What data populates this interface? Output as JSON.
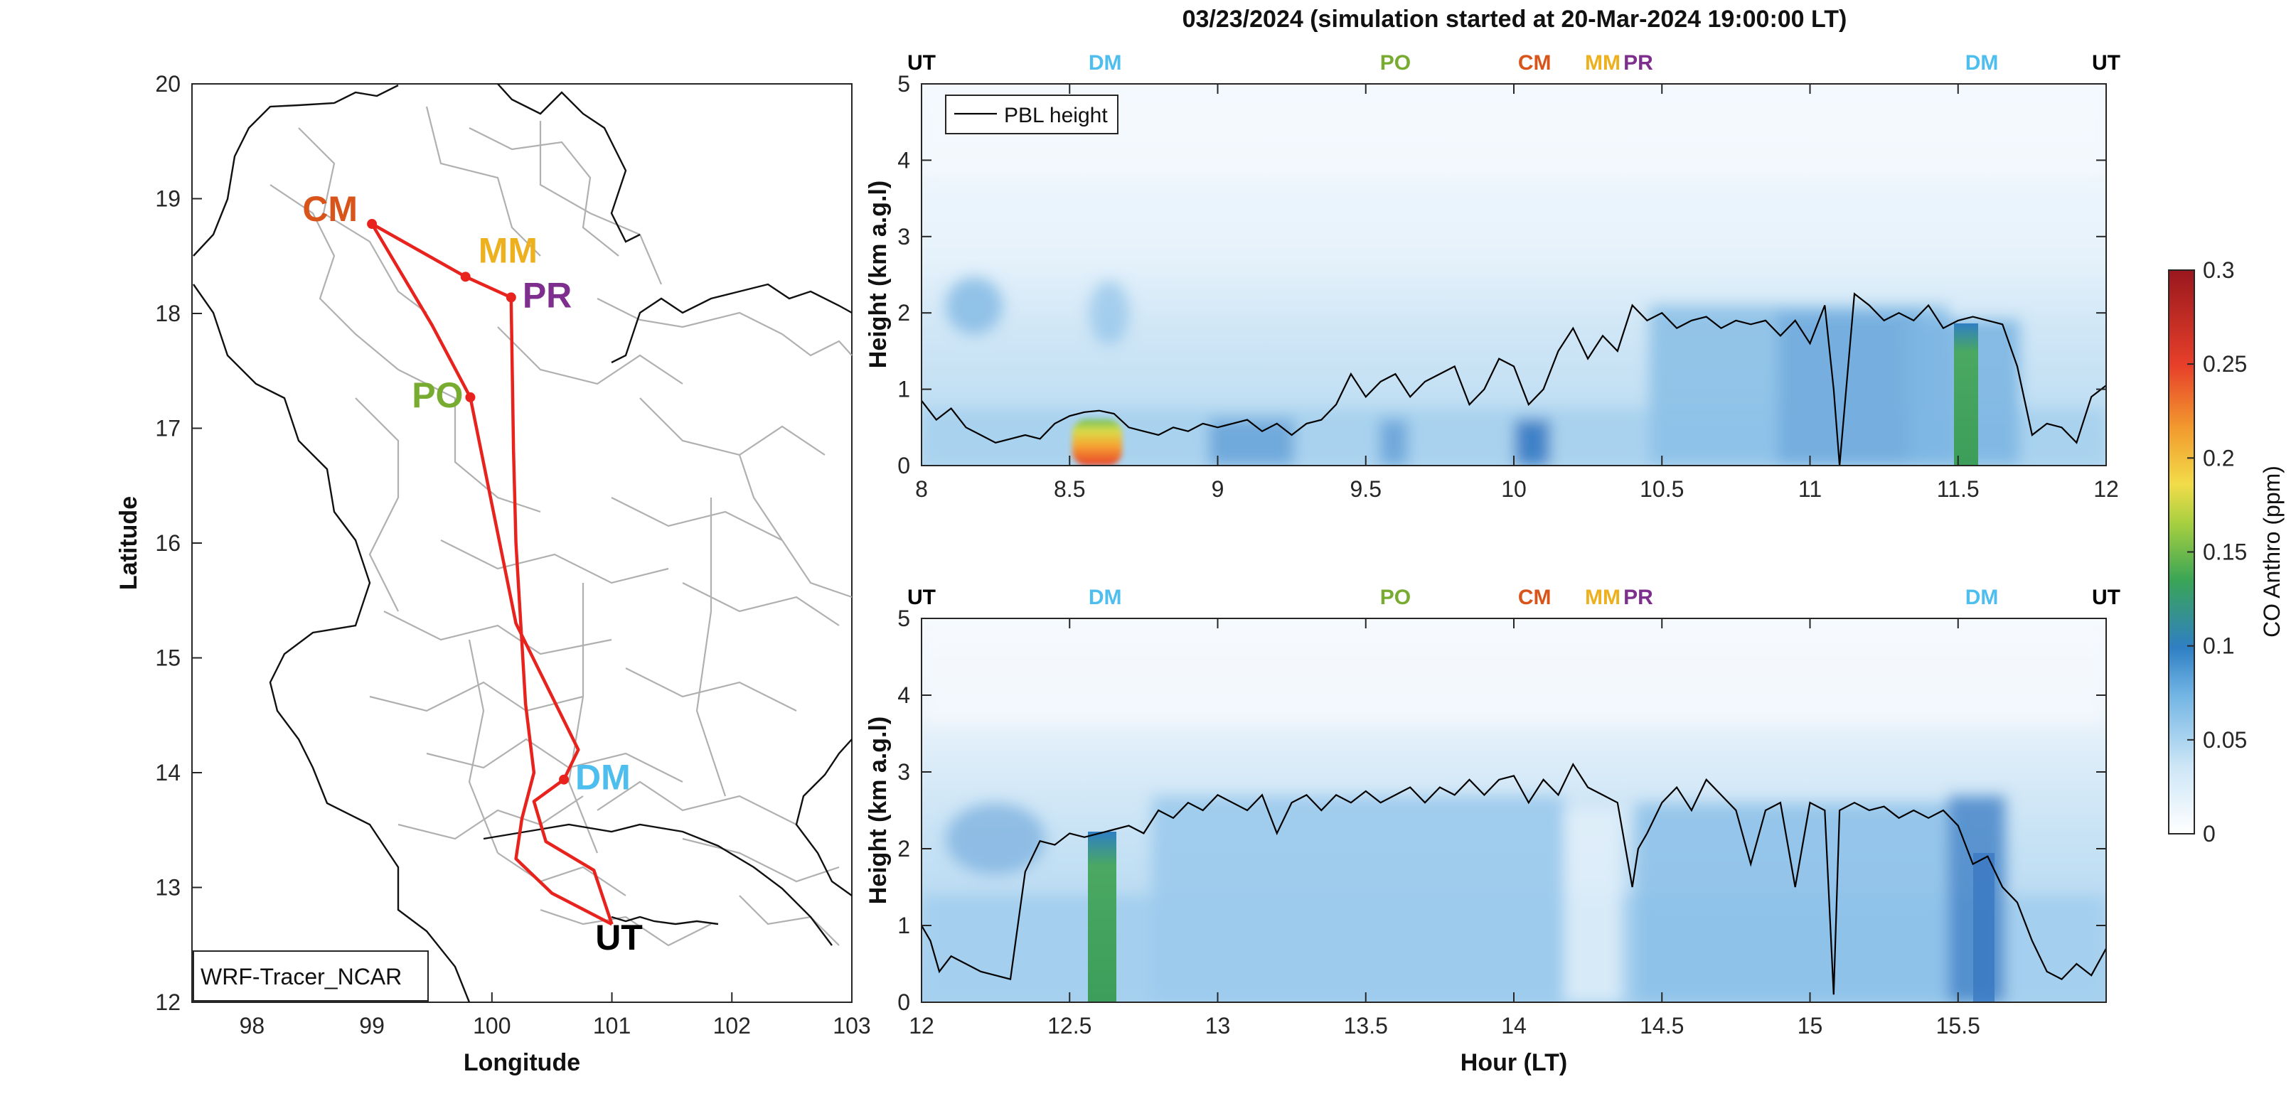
{
  "title": "03/23/2024 (simulation started at 20-Mar-2024 19:00:00 LT)",
  "map": {
    "xlabel": "Longitude",
    "ylabel": "Latitude",
    "xticks": [
      98,
      99,
      100,
      101,
      102,
      103
    ],
    "yticks": [
      12,
      13,
      14,
      15,
      16,
      17,
      18,
      19,
      20
    ],
    "xlim": [
      97.5,
      103
    ],
    "ylim": [
      12,
      20
    ],
    "legend_box": "WRF-Tracer_NCAR",
    "route_color": "#e8231e",
    "stations": [
      {
        "label": "CM",
        "lon": 99.0,
        "lat": 18.78,
        "color": "#d9541a"
      },
      {
        "label": "MM",
        "lon": 99.78,
        "lat": 18.32,
        "color": "#edb120"
      },
      {
        "label": "PR",
        "lon": 100.16,
        "lat": 18.14,
        "color": "#7e2f8e"
      },
      {
        "label": "PO",
        "lon": 99.82,
        "lat": 17.27,
        "color": "#77ac30"
      },
      {
        "label": "DM",
        "lon": 100.6,
        "lat": 13.94,
        "color": "#4dbeee"
      },
      {
        "label": "UT",
        "lon": 101.0,
        "lat": 12.68,
        "color": "#000000"
      }
    ]
  },
  "colorbar": {
    "label": "CO Anthro (ppm)",
    "ticks": [
      "0",
      "0.05",
      "0.1",
      "0.15",
      "0.2",
      "0.25",
      "0.3"
    ],
    "range": [
      0,
      0.3
    ]
  },
  "chart_data": [
    {
      "type": "heatmap",
      "xlim": [
        8,
        12
      ],
      "ylim": [
        0,
        5
      ],
      "xticks": [
        "8",
        "8.5",
        "9",
        "9.5",
        "10",
        "10.5",
        "11",
        "11.5",
        "12"
      ],
      "yticks": [
        "0",
        "1",
        "2",
        "3",
        "4",
        "5"
      ],
      "ylabel": "Height (km a.g.l)",
      "legend": "PBL height",
      "top_labels": [
        {
          "text": "UT",
          "x": 8.0,
          "color": "#000000"
        },
        {
          "text": "DM",
          "x": 8.62,
          "color": "#4dbeee"
        },
        {
          "text": "PO",
          "x": 9.6,
          "color": "#77ac30"
        },
        {
          "text": "CM",
          "x": 10.07,
          "color": "#d9541a"
        },
        {
          "text": "MM",
          "x": 10.3,
          "color": "#edb120"
        },
        {
          "text": "PR",
          "x": 10.42,
          "color": "#7e2f8e"
        },
        {
          "text": "DM",
          "x": 11.58,
          "color": "#4dbeee"
        },
        {
          "text": "UT",
          "x": 12.0,
          "color": "#000000"
        }
      ],
      "pbl": {
        "x": [
          8.0,
          8.05,
          8.1,
          8.15,
          8.2,
          8.25,
          8.3,
          8.35,
          8.4,
          8.45,
          8.5,
          8.55,
          8.6,
          8.65,
          8.7,
          8.75,
          8.8,
          8.85,
          8.9,
          8.95,
          9.0,
          9.05,
          9.1,
          9.15,
          9.2,
          9.25,
          9.3,
          9.35,
          9.4,
          9.45,
          9.5,
          9.55,
          9.6,
          9.65,
          9.7,
          9.75,
          9.8,
          9.85,
          9.9,
          9.95,
          10.0,
          10.05,
          10.1,
          10.15,
          10.2,
          10.25,
          10.3,
          10.35,
          10.4,
          10.45,
          10.5,
          10.55,
          10.6,
          10.65,
          10.7,
          10.75,
          10.8,
          10.85,
          10.9,
          10.95,
          11.0,
          11.05,
          11.08,
          11.1,
          11.15,
          11.2,
          11.25,
          11.3,
          11.35,
          11.4,
          11.45,
          11.5,
          11.55,
          11.6,
          11.65,
          11.7,
          11.75,
          11.8,
          11.85,
          11.9,
          11.95,
          12.0
        ],
        "y": [
          0.85,
          0.6,
          0.75,
          0.5,
          0.4,
          0.3,
          0.35,
          0.4,
          0.35,
          0.55,
          0.65,
          0.7,
          0.72,
          0.68,
          0.5,
          0.45,
          0.4,
          0.5,
          0.45,
          0.55,
          0.5,
          0.55,
          0.6,
          0.45,
          0.55,
          0.4,
          0.55,
          0.6,
          0.8,
          1.2,
          0.9,
          1.1,
          1.2,
          0.9,
          1.1,
          1.2,
          1.3,
          0.8,
          1.0,
          1.4,
          1.3,
          0.8,
          1.0,
          1.5,
          1.8,
          1.4,
          1.7,
          1.5,
          2.1,
          1.9,
          2.0,
          1.8,
          1.9,
          1.95,
          1.8,
          1.9,
          1.85,
          1.9,
          1.7,
          1.9,
          1.6,
          2.1,
          1.0,
          0.0,
          2.25,
          2.1,
          1.9,
          2.0,
          1.9,
          2.1,
          1.8,
          1.9,
          1.95,
          1.9,
          1.85,
          1.3,
          0.4,
          0.55,
          0.5,
          0.3,
          0.9,
          1.05
        ]
      }
    },
    {
      "type": "heatmap",
      "xlim": [
        12,
        16
      ],
      "ylim": [
        0,
        5
      ],
      "xticks": [
        "12",
        "12.5",
        "13",
        "13.5",
        "14",
        "14.5",
        "15",
        "15.5"
      ],
      "yticks": [
        "0",
        "1",
        "2",
        "3",
        "4",
        "5"
      ],
      "xlabel": "Hour (LT)",
      "ylabel": "Height (km a.g.l)",
      "top_labels": [
        {
          "text": "UT",
          "x": 12.0,
          "color": "#000000"
        },
        {
          "text": "DM",
          "x": 12.62,
          "color": "#4dbeee"
        },
        {
          "text": "PO",
          "x": 13.6,
          "color": "#77ac30"
        },
        {
          "text": "CM",
          "x": 14.07,
          "color": "#d9541a"
        },
        {
          "text": "MM",
          "x": 14.3,
          "color": "#edb120"
        },
        {
          "text": "PR",
          "x": 14.42,
          "color": "#7e2f8e"
        },
        {
          "text": "DM",
          "x": 15.58,
          "color": "#4dbeee"
        },
        {
          "text": "UT",
          "x": 16.0,
          "color": "#000000"
        }
      ],
      "pbl": {
        "x": [
          12.0,
          12.03,
          12.06,
          12.1,
          12.15,
          12.2,
          12.25,
          12.3,
          12.35,
          12.4,
          12.45,
          12.5,
          12.55,
          12.6,
          12.65,
          12.7,
          12.75,
          12.8,
          12.85,
          12.9,
          12.95,
          13.0,
          13.05,
          13.1,
          13.15,
          13.2,
          13.25,
          13.3,
          13.35,
          13.4,
          13.45,
          13.5,
          13.55,
          13.6,
          13.65,
          13.7,
          13.75,
          13.8,
          13.85,
          13.9,
          13.95,
          14.0,
          14.05,
          14.1,
          14.15,
          14.2,
          14.25,
          14.3,
          14.35,
          14.4,
          14.42,
          14.45,
          14.5,
          14.55,
          14.6,
          14.65,
          14.7,
          14.75,
          14.8,
          14.85,
          14.9,
          14.95,
          15.0,
          15.05,
          15.08,
          15.1,
          15.15,
          15.2,
          15.25,
          15.3,
          15.35,
          15.4,
          15.45,
          15.5,
          15.55,
          15.6,
          15.65,
          15.7,
          15.75,
          15.8,
          15.85,
          15.9,
          15.95,
          16.0
        ],
        "y": [
          1.0,
          0.8,
          0.4,
          0.6,
          0.5,
          0.4,
          0.35,
          0.3,
          1.7,
          2.1,
          2.05,
          2.2,
          2.15,
          2.2,
          2.25,
          2.3,
          2.2,
          2.5,
          2.4,
          2.6,
          2.5,
          2.7,
          2.6,
          2.5,
          2.7,
          2.2,
          2.6,
          2.7,
          2.5,
          2.7,
          2.6,
          2.75,
          2.6,
          2.7,
          2.8,
          2.6,
          2.8,
          2.7,
          2.9,
          2.7,
          2.9,
          2.95,
          2.6,
          2.9,
          2.7,
          3.1,
          2.8,
          2.7,
          2.6,
          1.5,
          2.0,
          2.2,
          2.6,
          2.8,
          2.5,
          2.9,
          2.7,
          2.5,
          1.8,
          2.5,
          2.6,
          1.5,
          2.6,
          2.5,
          0.1,
          2.5,
          2.6,
          2.5,
          2.55,
          2.4,
          2.5,
          2.4,
          2.5,
          2.3,
          1.8,
          1.9,
          1.5,
          1.3,
          0.8,
          0.4,
          0.3,
          0.5,
          0.35,
          0.7
        ]
      }
    }
  ]
}
